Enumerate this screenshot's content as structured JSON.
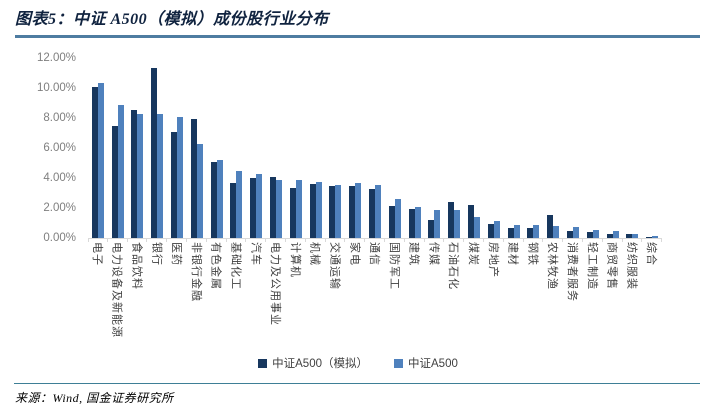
{
  "header": {
    "title": "图表5：中证 A500（模拟）成份股行业分布"
  },
  "footer": {
    "source": "来源：Wind, 国金证券研究所"
  },
  "colors": {
    "series_dark": "#17375E",
    "series_light": "#4F81BD",
    "title_rule": "#4e7ca1",
    "bottom_rule": "#3e7f96",
    "axis_line": "#d9d9d9",
    "axis_text": "#7f7f7f"
  },
  "legend": [
    {
      "label": "中证A500（模拟）",
      "color": "#17375E"
    },
    {
      "label": "中证A500",
      "color": "#4F81BD"
    }
  ],
  "chart_data": {
    "type": "bar",
    "title": "中证 A500（模拟）成份股行业分布",
    "xlabel": "",
    "ylabel": "",
    "ylim": [
      0,
      12
    ],
    "grid": false,
    "legend_position": "bottom",
    "yticks": [
      "12.00%",
      "10.00%",
      "8.00%",
      "6.00%",
      "4.00%",
      "2.00%",
      "0.00%"
    ],
    "categories": [
      "电子",
      "电力设备及新能源",
      "食品饮料",
      "银行",
      "医药",
      "非银行金融",
      "有色金属",
      "基础化工",
      "汽车",
      "电力及公用事业",
      "计算机",
      "机械",
      "交通运输",
      "家电",
      "通信",
      "国防军工",
      "建筑",
      "传媒",
      "石油石化",
      "煤炭",
      "房地产",
      "建材",
      "钢铁",
      "农林牧渔",
      "消费者服务",
      "轻工制造",
      "商贸零售",
      "纺织服装",
      "综合"
    ],
    "series": [
      {
        "name": "中证A500（模拟）",
        "color": "#17375E",
        "values": [
          10.1,
          7.5,
          8.55,
          11.35,
          7.1,
          7.95,
          5.1,
          3.65,
          4.0,
          4.1,
          3.35,
          3.6,
          3.45,
          3.5,
          3.3,
          2.15,
          1.95,
          1.2,
          2.4,
          2.2,
          0.95,
          0.7,
          0.65,
          1.55,
          0.45,
          0.4,
          0.25,
          0.25,
          0.1
        ]
      },
      {
        "name": "中证A500",
        "color": "#4F81BD",
        "values": [
          10.35,
          8.9,
          8.3,
          8.3,
          8.05,
          6.3,
          5.2,
          4.45,
          4.25,
          3.9,
          3.85,
          3.75,
          3.55,
          3.65,
          3.55,
          2.6,
          2.05,
          1.9,
          1.85,
          1.4,
          1.15,
          0.85,
          0.9,
          0.8,
          0.75,
          0.55,
          0.45,
          0.3,
          0.15
        ]
      }
    ]
  }
}
